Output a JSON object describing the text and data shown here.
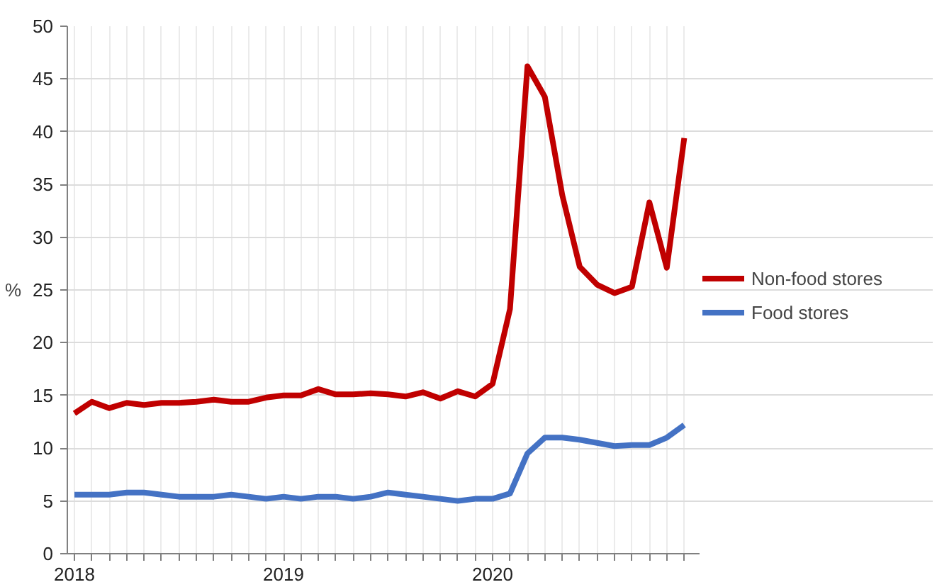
{
  "chart_data": {
    "type": "line",
    "ylabel": "%",
    "x": [
      2018,
      2018.0833,
      2018.1667,
      2018.25,
      2018.3333,
      2018.4167,
      2018.5,
      2018.5833,
      2018.6667,
      2018.75,
      2018.8333,
      2018.9167,
      2019,
      2019.0833,
      2019.1667,
      2019.25,
      2019.3333,
      2019.4167,
      2019.5,
      2019.5833,
      2019.6667,
      2019.75,
      2019.8333,
      2019.9167,
      2020,
      2020.0833,
      2020.1667,
      2020.25,
      2020.3333,
      2020.4167,
      2020.5,
      2020.5833,
      2020.6667,
      2020.75,
      2020.8333,
      2020.9167
    ],
    "series": [
      {
        "name": "Non-food stores",
        "color": "#c00000",
        "values": [
          13.3,
          14.4,
          13.8,
          14.3,
          14.1,
          14.3,
          14.3,
          14.4,
          14.6,
          14.4,
          14.4,
          14.8,
          15.0,
          15.0,
          15.6,
          15.1,
          15.1,
          15.2,
          15.1,
          14.9,
          15.3,
          14.7,
          15.4,
          14.9,
          16.1,
          23.2,
          46.2,
          43.3,
          34.0,
          27.2,
          25.5,
          24.7,
          25.3,
          33.3,
          27.1,
          39.4
        ]
      },
      {
        "name": "Food stores",
        "color": "#4472c4",
        "values": [
          5.6,
          5.6,
          5.6,
          5.8,
          5.8,
          5.6,
          5.4,
          5.4,
          5.4,
          5.6,
          5.4,
          5.2,
          5.4,
          5.2,
          5.4,
          5.4,
          5.2,
          5.4,
          5.8,
          5.6,
          5.4,
          5.2,
          5.0,
          5.2,
          5.2,
          5.7,
          9.5,
          11.0,
          11.0,
          10.8,
          10.5,
          10.2,
          10.3,
          10.3,
          11.0,
          12.2
        ]
      }
    ],
    "xlim": [
      2017.966,
      2020.99
    ],
    "xticks": [
      2018,
      {
        "value": 2018.0833,
        "label": null
      },
      {
        "value": 2018.1667,
        "label": null
      },
      {
        "value": 2018.25,
        "label": null
      },
      {
        "value": 2018.3333,
        "label": null
      },
      {
        "value": 2018.4167,
        "label": null
      },
      {
        "value": 2018.5,
        "label": null
      },
      {
        "value": 2018.5833,
        "label": null
      },
      {
        "value": 2018.6667,
        "label": null
      },
      {
        "value": 2018.75,
        "label": null
      },
      {
        "value": 2018.8333,
        "label": null
      },
      {
        "value": 2018.9167,
        "label": null
      },
      2019,
      {
        "value": 2019.0833,
        "label": null
      },
      {
        "value": 2019.1667,
        "label": null
      },
      {
        "value": 2019.25,
        "label": null
      },
      {
        "value": 2019.3333,
        "label": null
      },
      {
        "value": 2019.4167,
        "label": null
      },
      {
        "value": 2019.5,
        "label": null
      },
      {
        "value": 2019.5833,
        "label": null
      },
      {
        "value": 2019.6667,
        "label": null
      },
      {
        "value": 2019.75,
        "label": null
      },
      {
        "value": 2019.8333,
        "label": null
      },
      {
        "value": 2019.9167,
        "label": null
      },
      2020,
      {
        "value": 2020.0833,
        "label": null
      },
      {
        "value": 2020.1667,
        "label": null
      },
      {
        "value": 2020.25,
        "label": null
      },
      {
        "value": 2020.3333,
        "label": null
      },
      {
        "value": 2020.4167,
        "label": null
      },
      {
        "value": 2020.5,
        "label": null
      },
      {
        "value": 2020.5833,
        "label": null
      },
      {
        "value": 2020.6667,
        "label": null
      },
      {
        "value": 2020.75,
        "label": null
      },
      {
        "value": 2020.8333,
        "label": null
      },
      {
        "value": 2020.9167,
        "label": null
      }
    ],
    "ylim": [
      0,
      50
    ],
    "yticks": [
      0,
      5,
      10,
      15,
      20,
      25,
      30,
      35,
      40,
      45,
      50
    ],
    "grid": true,
    "legend": "right",
    "line_style": "solid"
  }
}
